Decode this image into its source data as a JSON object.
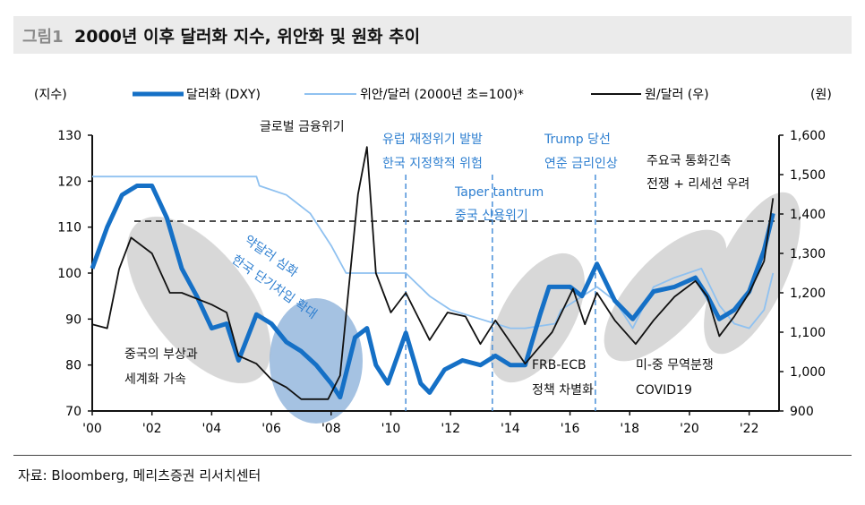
{
  "header": {
    "figure_label": "그림1",
    "title": "2000년 이후 달러화 지수, 위안화 및 원화 추이"
  },
  "source": "자료: Bloomberg, 메리츠증권 리서치센터",
  "chart_data": {
    "type": "line",
    "title": "2000년 이후 달러화 지수, 위안화 및 원화 추이",
    "ylabel_left": "(지수)",
    "ylabel_right": "(원)",
    "ylim_left": [
      70,
      130
    ],
    "ylim_right": [
      900,
      1600
    ],
    "xlim": [
      2000,
      2023
    ],
    "x_ticks": [
      "'00",
      "'02",
      "'04",
      "'06",
      "'08",
      "'10",
      "'12",
      "'14",
      "'16",
      "'18",
      "'20",
      "'22"
    ],
    "y_ticks_left": [
      "130",
      "120",
      "110",
      "100",
      "90",
      "80",
      "70"
    ],
    "y_ticks_right": [
      "1,600",
      "1,500",
      "1,400",
      "1,300",
      "1,200",
      "1,100",
      "1,000",
      "900"
    ],
    "legend_position": "top",
    "reference_line_right": 1380,
    "event_lines": [
      2010.5,
      2013.4,
      2016.85
    ],
    "series": [
      {
        "name": "달러화 (DXY)",
        "axis": "left",
        "color": "#1570c6",
        "x": [
          2000,
          2000.5,
          2001,
          2001.5,
          2002,
          2002.5,
          2003,
          2003.5,
          2004,
          2004.5,
          2004.9,
          2005.5,
          2006,
          2006.5,
          2007,
          2007.5,
          2008,
          2008.3,
          2008.8,
          2009.2,
          2009.5,
          2009.9,
          2010.5,
          2011,
          2011.3,
          2011.8,
          2012.4,
          2013,
          2013.5,
          2014,
          2014.5,
          2015,
          2015.3,
          2016,
          2016.4,
          2016.9,
          2017.5,
          2018.1,
          2018.8,
          2019.5,
          2020.2,
          2020.6,
          2021,
          2021.5,
          2022,
          2022.5,
          2022.8
        ],
        "values": [
          101,
          110,
          117,
          119,
          119,
          112,
          101,
          95,
          88,
          89,
          81,
          91,
          89,
          85,
          83,
          80,
          76,
          73,
          86,
          88,
          80,
          76,
          87,
          76,
          74,
          79,
          81,
          80,
          82,
          80,
          80,
          91,
          97,
          97,
          95,
          102,
          94,
          90,
          96,
          97,
          99,
          95,
          90,
          92,
          96,
          105,
          113
        ]
      },
      {
        "name": "위안/달러 (2000년 초=100)*",
        "axis": "left",
        "color": "#8fc1f0",
        "x": [
          2000,
          2005.5,
          2005.6,
          2006.5,
          2007.3,
          2008.0,
          2008.5,
          2010.5,
          2011.3,
          2012,
          2013,
          2014,
          2014.5,
          2015.5,
          2015.7,
          2016.9,
          2017.5,
          2018.1,
          2018.8,
          2019.5,
          2020.4,
          2021,
          2021.5,
          2022,
          2022.5,
          2022.8
        ],
        "values": [
          121,
          121,
          119,
          117,
          113,
          106,
          100,
          100,
          95,
          92,
          90,
          88,
          88,
          89,
          92,
          97,
          94,
          88,
          97,
          99,
          101,
          93,
          89,
          88,
          92,
          100
        ]
      },
      {
        "name": "원/달러 (우)",
        "axis": "right",
        "color": "#111111",
        "x": [
          2000,
          2000.5,
          2000.9,
          2001.3,
          2002,
          2002.6,
          2003,
          2004,
          2004.5,
          2004.9,
          2005.5,
          2006,
          2006.5,
          2007,
          2007.9,
          2008.3,
          2008.9,
          2009.2,
          2009.5,
          2010,
          2010.5,
          2011.3,
          2011.9,
          2012.5,
          2013,
          2013.5,
          2014.5,
          2015.4,
          2016.1,
          2016.5,
          2016.9,
          2017.5,
          2018.2,
          2018.8,
          2019.5,
          2020.2,
          2020.6,
          2021,
          2021.5,
          2022,
          2022.5,
          2022.8
        ],
        "values": [
          1120,
          1110,
          1260,
          1340,
          1300,
          1200,
          1200,
          1170,
          1150,
          1040,
          1020,
          980,
          960,
          930,
          930,
          990,
          1450,
          1570,
          1250,
          1150,
          1200,
          1080,
          1150,
          1140,
          1070,
          1130,
          1020,
          1100,
          1210,
          1120,
          1200,
          1130,
          1070,
          1130,
          1190,
          1230,
          1190,
          1090,
          1140,
          1200,
          1280,
          1440
        ]
      }
    ],
    "annotations": {
      "gfc": "글로벌 금융위기",
      "euro_1": "유럽 재정위기 발발",
      "euro_2": "한국 지정학적 위험",
      "taper_1": "Taper tantrum",
      "taper_2": "중국 신용위기",
      "trump_1": "Trump 당선",
      "trump_2": "연준 금리인상",
      "tight_1": "주요국 통화긴축",
      "tight_2": "전쟁 + 리세션 우려",
      "weak_1": "약달러 심화",
      "weak_2": "한국 단기차입 확대",
      "china_1": "중국의 부상과",
      "china_2": "세계화 가속",
      "frb_1": "FRB-ECB",
      "frb_2": "정책 차별화",
      "trade_1": "미-중 무역분쟁",
      "trade_2": "COVID19"
    }
  }
}
